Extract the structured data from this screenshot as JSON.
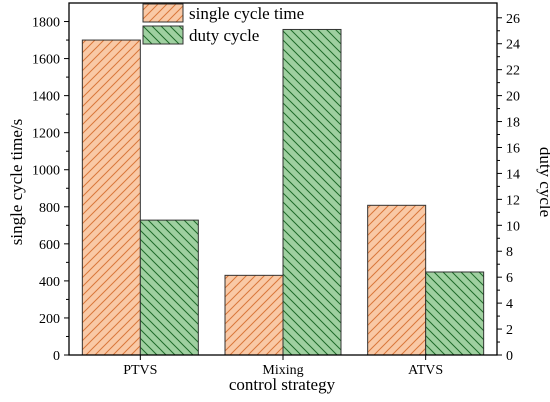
{
  "chart_data": {
    "type": "bar",
    "title": "",
    "xlabel": "control strategy",
    "categories": [
      "PTVS",
      "Mixing",
      "ATVS"
    ],
    "series": [
      {
        "name": "single cycle time",
        "axis": "left",
        "values": [
          1700,
          430,
          808
        ],
        "fill": "#f9c9a6",
        "stroke": "#d9773a",
        "hatch": "forward-diagonal"
      },
      {
        "name": "duty cycle",
        "axis": "right",
        "values": [
          10.4,
          25.1,
          6.4
        ],
        "fill": "#9fd0a0",
        "stroke": "#1f6b2a",
        "hatch": "back-diagonal"
      }
    ],
    "y_left": {
      "label": "single cycle time/s",
      "lim": [
        0,
        1900
      ],
      "ticks": [
        0,
        200,
        400,
        600,
        800,
        1000,
        1200,
        1400,
        1600,
        1800
      ]
    },
    "y_right": {
      "label": "duty cycle",
      "lim": [
        0,
        27.14
      ],
      "ticks": [
        0,
        2,
        4,
        6,
        8,
        10,
        12,
        14,
        16,
        18,
        20,
        22,
        24,
        26
      ]
    },
    "legend": "top-center",
    "grid": false
  }
}
